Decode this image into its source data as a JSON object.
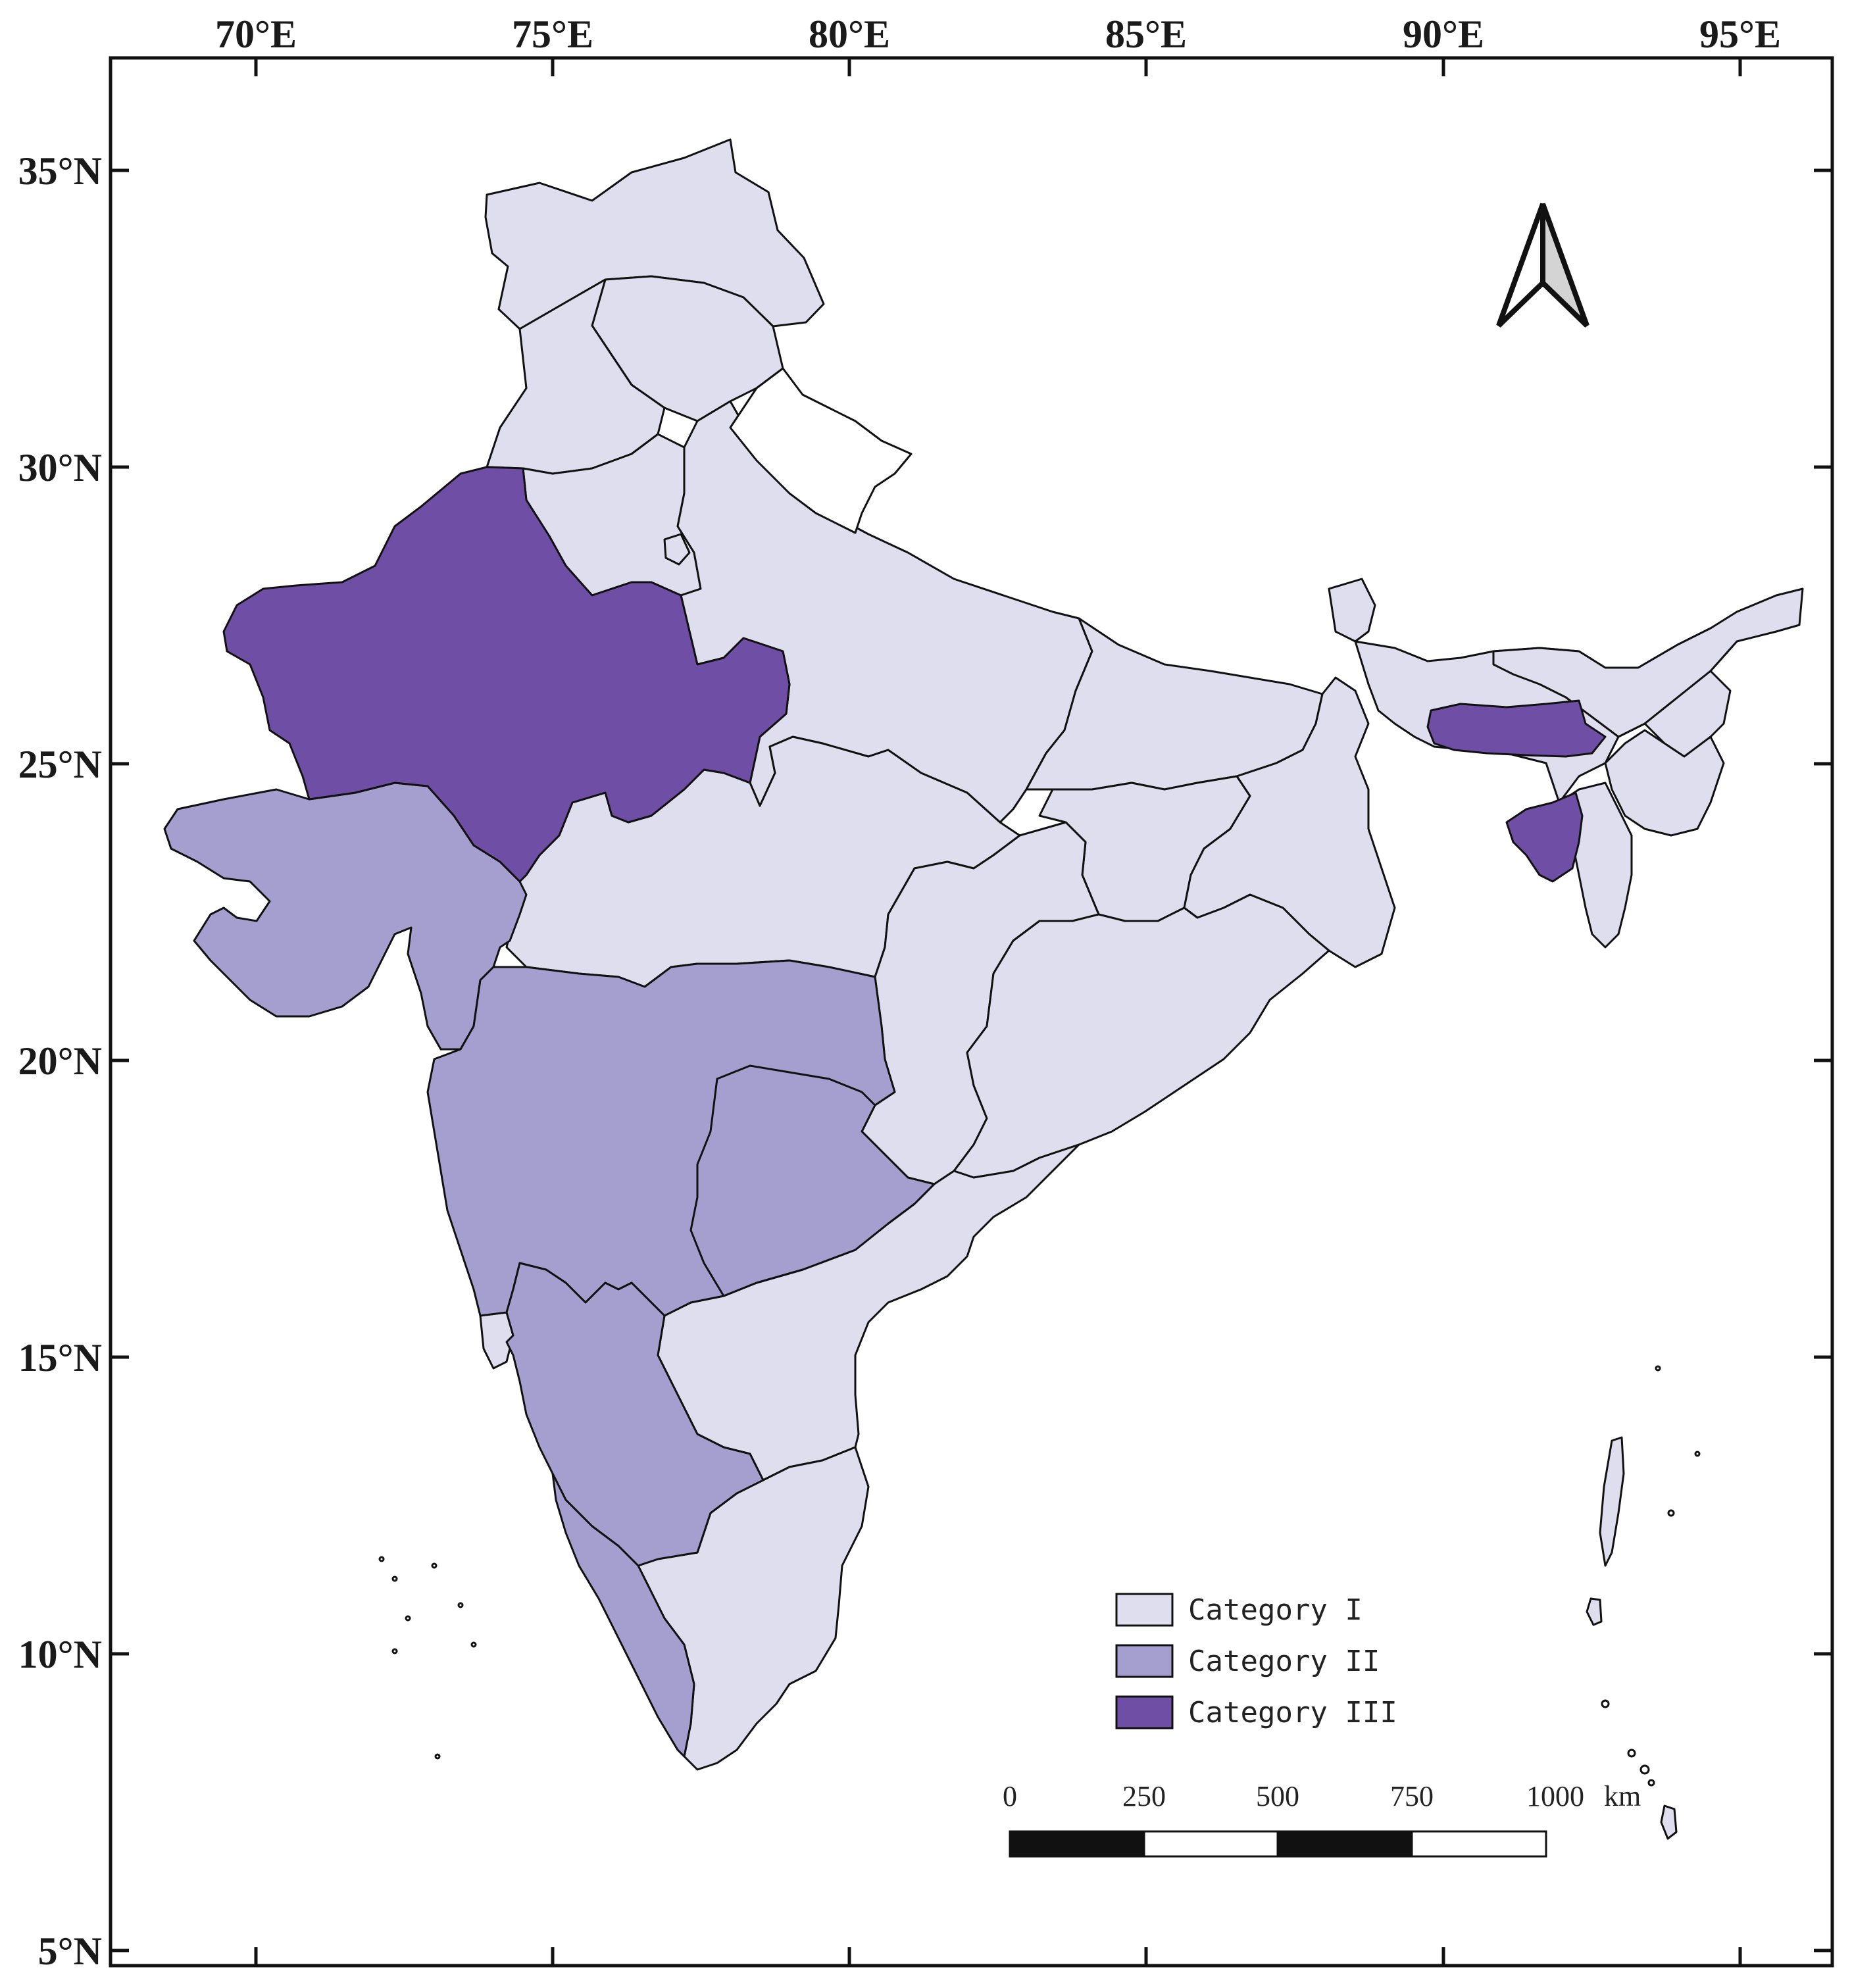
{
  "map": {
    "lon_labels": [
      "70°E",
      "75°E",
      "80°E",
      "85°E",
      "90°E",
      "95°E"
    ],
    "lat_labels": [
      "35°N",
      "30°N",
      "25°N",
      "20°N",
      "15°N",
      "10°N",
      "5°N"
    ]
  },
  "legend": {
    "items": [
      {
        "label": "Category I",
        "color": "#dedeee"
      },
      {
        "label": "Category II",
        "color": "#a59fcf"
      },
      {
        "label": "Category III",
        "color": "#6f4ea5"
      }
    ]
  },
  "scale_bar": {
    "labels": [
      "0",
      "250",
      "500",
      "750",
      "1000"
    ],
    "unit": "km"
  },
  "north_arrow": {
    "icon": "north-arrow-icon"
  },
  "colors": {
    "category_1": "#dedeee",
    "category_2": "#a59fcf",
    "category_3": "#6f4ea5",
    "no_data": "#ffffff",
    "outline": "#111111"
  }
}
